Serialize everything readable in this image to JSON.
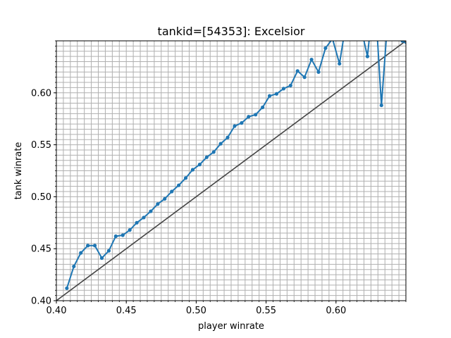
{
  "chart_data": {
    "type": "line",
    "title": "tankid=[54353]: Excelsior",
    "xlabel": "player winrate",
    "ylabel": "tank winrate",
    "xlim": [
      0.4,
      0.65
    ],
    "ylim": [
      0.4,
      0.65
    ],
    "grid": true,
    "minor_grid_step": 0.005,
    "x_ticks": [
      "0.40",
      "0.45",
      "0.50",
      "0.55",
      "0.60"
    ],
    "y_ticks": [
      "0.40",
      "0.45",
      "0.50",
      "0.55",
      "0.60"
    ],
    "reference_line": {
      "x": [
        0.4,
        0.65
      ],
      "y": [
        0.4,
        0.65
      ],
      "color": "#444444"
    },
    "series": [
      {
        "color": "#1f77b4",
        "x": [
          0.4075,
          0.4125,
          0.4175,
          0.4225,
          0.4275,
          0.4325,
          0.4375,
          0.4425,
          0.4475,
          0.4525,
          0.4575,
          0.4625,
          0.4675,
          0.4725,
          0.4775,
          0.4825,
          0.4875,
          0.4925,
          0.4975,
          0.5025,
          0.5075,
          0.5125,
          0.5175,
          0.5225,
          0.5275,
          0.5325,
          0.5375,
          0.5425,
          0.5475,
          0.5525,
          0.5575,
          0.5625,
          0.5675,
          0.5725,
          0.5775,
          0.5825,
          0.5875,
          0.5925,
          0.5975,
          0.6025,
          0.6075,
          0.6125,
          0.6175,
          0.6225,
          0.6275,
          0.6325,
          0.6375,
          0.6425,
          0.6475,
          0.6525
        ],
        "y": [
          0.412,
          0.433,
          0.446,
          0.453,
          0.453,
          0.441,
          0.448,
          0.462,
          0.463,
          0.468,
          0.475,
          0.48,
          0.486,
          0.493,
          0.498,
          0.505,
          0.511,
          0.518,
          0.526,
          0.531,
          0.538,
          0.543,
          0.551,
          0.557,
          0.568,
          0.571,
          0.577,
          0.579,
          0.586,
          0.597,
          0.599,
          0.604,
          0.607,
          0.621,
          0.615,
          0.632,
          0.62,
          0.643,
          0.652,
          0.628,
          0.67,
          0.68,
          0.665,
          0.635,
          0.7,
          0.588,
          0.68,
          0.67,
          0.65,
          0.645
        ]
      }
    ]
  }
}
